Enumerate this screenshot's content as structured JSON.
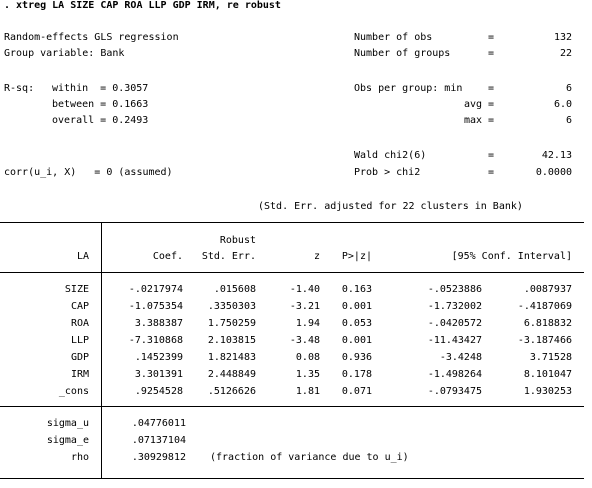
{
  "command": ". xtreg LA SIZE CAP ROA LLP GDP IRM, re robust",
  "model_type": "Random-effects GLS regression",
  "group_variable": "Group variable: Bank",
  "stats_right": [
    {
      "label": "Number of obs",
      "eq": "=",
      "value": "132"
    },
    {
      "label": "Number of groups",
      "eq": "=",
      "value": "22"
    },
    {
      "label": "Obs per group: min",
      "eq": "=",
      "value": "6"
    },
    {
      "label": "avg",
      "eq": "=",
      "value": "6.0"
    },
    {
      "label": "max",
      "eq": "=",
      "value": "6"
    },
    {
      "label": "Wald chi2(6)",
      "eq": "=",
      "value": "42.13"
    },
    {
      "label": "Prob > chi2",
      "eq": "=",
      "value": "0.0000"
    }
  ],
  "rsq": {
    "label": "R-sq:",
    "within": "within  = 0.3057",
    "between": "between = 0.1663",
    "overall": "overall = 0.2493"
  },
  "corr": "corr(u_i, X)   = 0 (assumed)",
  "note": "(Std. Err. adjusted for 22 clusters in Bank)",
  "table": {
    "depvar": "LA",
    "header_top": "Robust",
    "headers": [
      "Coef.",
      "Std. Err.",
      "z",
      "P>|z|",
      "[95% Conf. Interval]"
    ],
    "rows": [
      {
        "name": "SIZE",
        "coef": "-.0217974",
        "se": ".015608",
        "z": "-1.40",
        "p": "0.163",
        "lo": "-.0523886",
        "hi": ".0087937"
      },
      {
        "name": "CAP",
        "coef": "-1.075354",
        "se": ".3350303",
        "z": "-3.21",
        "p": "0.001",
        "lo": "-1.732002",
        "hi": "-.4187069"
      },
      {
        "name": "ROA",
        "coef": "3.388387",
        "se": "1.750259",
        "z": "1.94",
        "p": "0.053",
        "lo": "-.0420572",
        "hi": "6.818832"
      },
      {
        "name": "LLP",
        "coef": "-7.310868",
        "se": "2.103815",
        "z": "-3.48",
        "p": "0.001",
        "lo": "-11.43427",
        "hi": "-3.187466"
      },
      {
        "name": "GDP",
        "coef": ".1452399",
        "se": "1.821483",
        "z": "0.08",
        "p": "0.936",
        "lo": "-3.4248",
        "hi": "3.71528"
      },
      {
        "name": "IRM",
        "coef": "3.301391",
        "se": "2.448849",
        "z": "1.35",
        "p": "0.178",
        "lo": "-1.498264",
        "hi": "8.101047"
      },
      {
        "name": "_cons",
        "coef": ".9254528",
        "se": ".5126626",
        "z": "1.81",
        "p": "0.071",
        "lo": "-.0793475",
        "hi": "1.930253"
      }
    ],
    "sigma_rows": [
      {
        "name": "sigma_u",
        "value": ".04776011"
      },
      {
        "name": "sigma_e",
        "value": ".07137104"
      },
      {
        "name": "rho",
        "value": ".30929812",
        "note": "(fraction of variance due to u_i)"
      }
    ]
  }
}
